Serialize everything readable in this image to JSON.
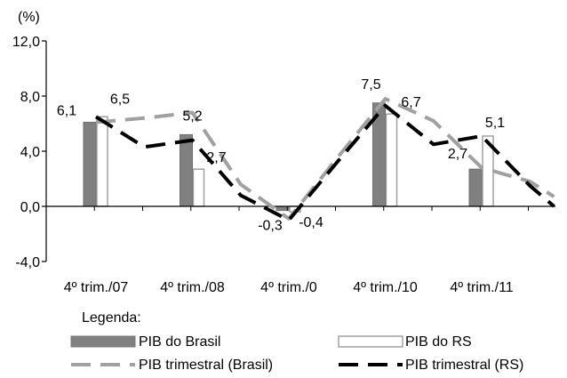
{
  "chart_data": {
    "type": "bar",
    "unit_label": "(%)",
    "ylim": [
      -4,
      12
    ],
    "y_ticks": [
      "12,0",
      "8,0",
      "4,0",
      "0,0",
      "-4,0"
    ],
    "y_tick_values": [
      12,
      8,
      4,
      0,
      -4
    ],
    "x_tick_labels": [
      "4º trim./07",
      "4º trim./08",
      "4º trim./0",
      "4º trim./10",
      "4º trim./11"
    ],
    "grid": false,
    "legend_title": "Legenda:",
    "legend_position": "bottom",
    "bar_series": [
      {
        "name": "PIB do Brasil",
        "style": "filled",
        "color": "#808080",
        "points": [
          {
            "pos": 0,
            "value": 6.1,
            "label": "6,1"
          },
          {
            "pos": 1,
            "value": 5.2,
            "label": ""
          },
          {
            "pos": 2,
            "value": -0.3,
            "label": "-0,3"
          },
          {
            "pos": 3,
            "value": 7.5,
            "label": ""
          },
          {
            "pos": 4,
            "value": 2.7,
            "label": "2,7"
          }
        ]
      },
      {
        "name": "PIB do RS",
        "style": "outline",
        "color": "#9a9a9a",
        "points": [
          {
            "pos": 0,
            "value": 6.5,
            "label": "6,5"
          },
          {
            "pos": 1,
            "value": 2.7,
            "label": "2,7"
          },
          {
            "pos": 2,
            "value": -0.4,
            "label": "-0,4"
          },
          {
            "pos": 3,
            "value": 6.7,
            "label": "6,7"
          },
          {
            "pos": 4,
            "value": 5.1,
            "label": "5,1"
          }
        ]
      }
    ],
    "value_labels": [
      {
        "text": "5,2",
        "pos": 1,
        "value": 5.2
      },
      {
        "text": "7,5",
        "pos": 3,
        "value": 7.5
      }
    ],
    "line_series": [
      {
        "name": "PIB trimestral (Brasil)",
        "color": "#a0a0a0",
        "dash": "long",
        "x": [
          0,
          0.5,
          1,
          1.5,
          2,
          2.5,
          3,
          3.5,
          4,
          4.5,
          4.75
        ],
        "y": [
          6.1,
          6.4,
          6.8,
          1.6,
          -0.9,
          3.5,
          7.8,
          6.2,
          2.8,
          1.8,
          0.7
        ]
      },
      {
        "name": "PIB trimestral (RS)",
        "color": "#000000",
        "dash": "long",
        "x": [
          0,
          0.5,
          1,
          1.5,
          2,
          2.5,
          3,
          3.5,
          4,
          4.5,
          4.75
        ],
        "y": [
          6.5,
          4.3,
          4.8,
          0.8,
          -1.0,
          3.2,
          7.3,
          4.5,
          5.1,
          1.5,
          0.0
        ]
      }
    ]
  }
}
